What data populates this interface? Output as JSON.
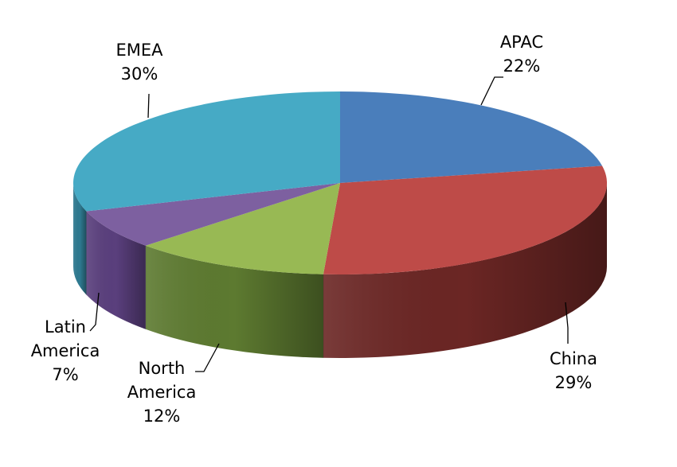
{
  "chart_data": {
    "type": "pie",
    "style": "3d",
    "labels": [
      "APAC",
      "China",
      "North America",
      "Latin America",
      "EMEA"
    ],
    "values": [
      22,
      29,
      12,
      7,
      30
    ],
    "value_labels": [
      "22%",
      "29%",
      "12%",
      "7%",
      "30%"
    ],
    "colors": [
      "#4a7ebb",
      "#be4b48",
      "#98b954",
      "#7d60a0",
      "#46aac5"
    ],
    "side_colors": [
      "#2f5488",
      "#6b2624",
      "#5d7a30",
      "#5a3f7d",
      "#2e7a91"
    ],
    "label_lines": [
      [
        "APAC"
      ],
      [
        "China"
      ],
      [
        "North",
        "America"
      ],
      [
        "Latin",
        "America"
      ],
      [
        "EMEA"
      ]
    ]
  }
}
